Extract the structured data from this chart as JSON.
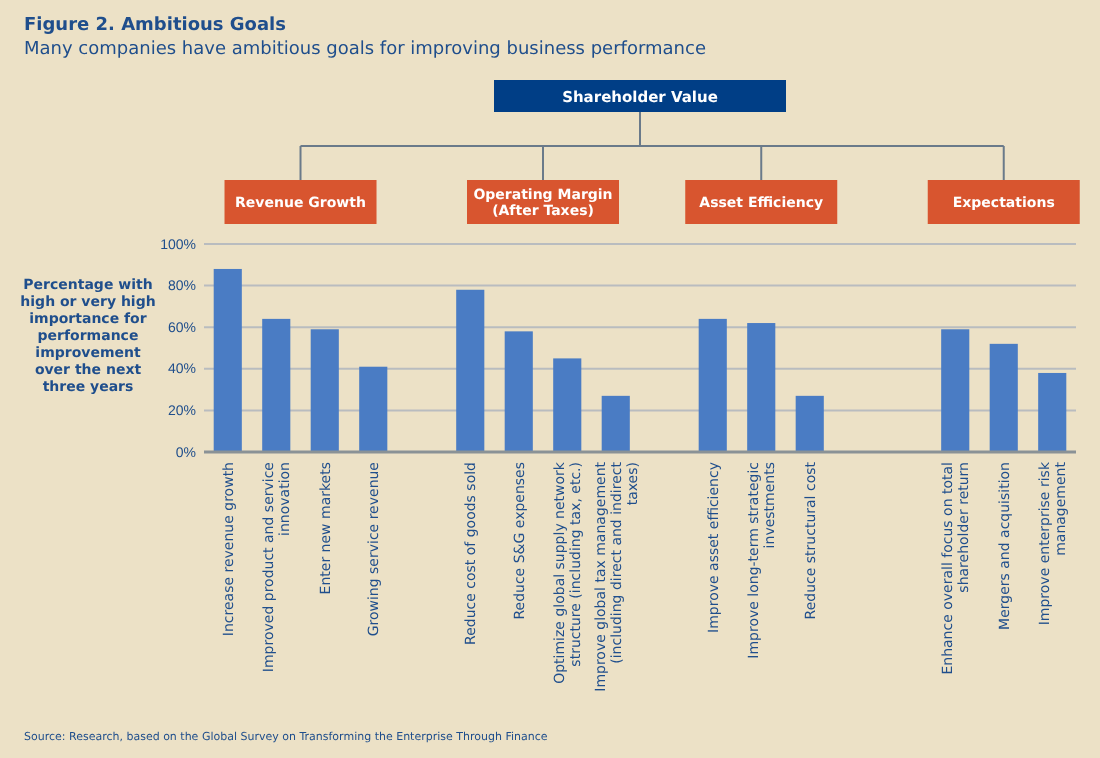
{
  "chart_data": {
    "type": "bar",
    "title": "Figure 2. Ambitious Goals",
    "subtitle": "Many companies have ambitious goals for improving business performance",
    "ylabel": "Percentage with high or very high importance for performance improvement over the next three years",
    "categories": [
      "Increase revenue growth",
      "Improved product and service innovation",
      "Enter new markets",
      "Growing service revenue",
      null,
      "Reduce cost of goods sold",
      "Reduce S&G expenses",
      "Optimize global supply network structure (including tax, etc.)",
      "Improve global tax management (including direct and indirect taxes)",
      null,
      "Improve asset efficiency",
      "Improve long-term strategic investments",
      "Reduce structural cost",
      null,
      null,
      "Enhance overall focus on total shareholder return",
      "Mergers and acquisition",
      "Improve enterprise risk management"
    ],
    "values": [
      88,
      64,
      59,
      41,
      null,
      78,
      58,
      45,
      27,
      null,
      64,
      62,
      27,
      null,
      null,
      59,
      52,
      38
    ],
    "color": "#4a7cc4",
    "ylim": [
      0,
      100
    ],
    "yticks": [
      {
        "value": 0,
        "label": "0%"
      },
      {
        "value": 20,
        "label": "20%"
      },
      {
        "value": 40,
        "label": "40%"
      },
      {
        "value": 60,
        "label": "60%"
      },
      {
        "value": 80,
        "label": "80%"
      },
      {
        "value": 100,
        "label": "100%"
      }
    ],
    "grid": "y",
    "annotations": [
      "Shareholder Value",
      "Revenue Growth",
      "Operating Margin (After Taxes)",
      "Asset Efficiency",
      "Expectations",
      "Source: Research, based on the Global Survey on Transforming the Enterprise Through Finance"
    ]
  }
}
